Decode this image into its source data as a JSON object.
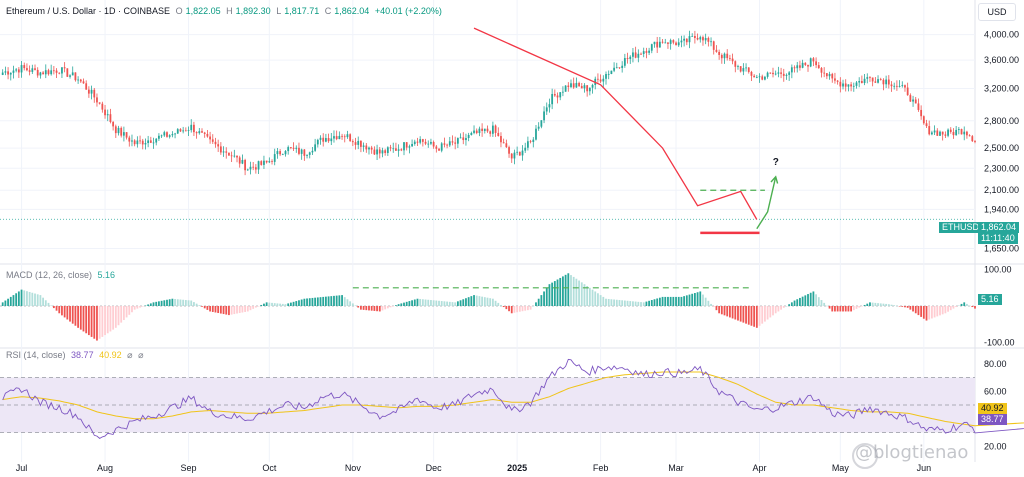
{
  "legend": {
    "title": "Ethereum / U.S. Dollar · 1D · COINBASE",
    "o_label": "O",
    "o_value": "1,822.05",
    "h_label": "H",
    "h_value": "1,892.30",
    "l_label": "L",
    "l_value": "1,817.71",
    "c_label": "C",
    "c_value": "1,862.04",
    "change": "+40.01 (+2.20%)"
  },
  "currency": "USD",
  "price_tag": {
    "symbol": "ETHUSD",
    "price": "1,862.04",
    "countdown": "11:11:40"
  },
  "macd_legend": {
    "label": "MACD (12, 26, close)",
    "value": "5.16"
  },
  "macd_tag": "5.16",
  "rsi_legend": {
    "label": "RSI (14, close)",
    "rsi_value": "38.77",
    "ma_value": "40.92"
  },
  "rsi_tags": {
    "ma": "40.92",
    "rsi": "38.77"
  },
  "watermark": "@blogtienao",
  "question_mark": "?",
  "colors": {
    "up": "#26a69a",
    "down": "#ef5350",
    "trendline": "#f23645",
    "dashed_green": "#4caf50",
    "arrow": "#4caf50",
    "rsi": "#7e57c2",
    "rsi_ma": "#f0c419",
    "rsi_band": "#ede7f6",
    "tag_blue": "#2962ff"
  },
  "chart_data": [
    {
      "type": "candlestick",
      "title": "Ethereum / U.S. Dollar · 1D · COINBASE",
      "y_scale": "log",
      "ylim": [
        1560,
        4250
      ],
      "y_ticks": [
        "4,000.00",
        "3,600.00",
        "3,200.00",
        "2,800.00",
        "2,500.00",
        "2,300.00",
        "2,100.00",
        "1,940.00",
        "1,650.00"
      ],
      "y_tick_values": [
        4000,
        3600,
        3200,
        2800,
        2500,
        2300,
        2100,
        1940,
        1650
      ],
      "x_ticks": [
        "Jul",
        "Aug",
        "Sep",
        "Oct",
        "Nov",
        "Dec",
        "2025",
        "Feb",
        "Mar",
        "Apr",
        "May",
        "Jun"
      ],
      "x_tick_dates": [
        "2024-07-01",
        "2024-08-01",
        "2024-09-01",
        "2024-10-01",
        "2024-11-01",
        "2024-12-01",
        "2025-01-01",
        "2025-02-01",
        "2025-03-01",
        "2025-04-01",
        "2025-05-01",
        "2025-06-01"
      ],
      "x_range": [
        "2024-06-23",
        "2025-06-20"
      ],
      "closes_weekly": {
        "start": "2024-06-24",
        "interval_days": 7,
        "values": [
          3420,
          3480,
          3420,
          3460,
          3330,
          3050,
          2700,
          2550,
          2600,
          2650,
          2730,
          2560,
          2450,
          2300,
          2350,
          2500,
          2450,
          2600,
          2650,
          2550,
          2450,
          2500,
          2600,
          2500,
          2550,
          2650,
          2700,
          2400,
          2550,
          3050,
          3250,
          3200,
          3400,
          3600,
          3750,
          3900,
          3850,
          4000,
          3700,
          3500,
          3350,
          3400,
          3450,
          3600,
          3300,
          3250,
          3350,
          3300,
          3150,
          2700,
          2650,
          2700,
          2500,
          2200,
          2000,
          1900,
          1950,
          2000,
          1850,
          1862
        ]
      },
      "last_close": 1862.04,
      "trendlines": [
        {
          "points": [
            [
              "2024-12-16",
              4110
            ],
            [
              "2025-01-06",
              3700
            ],
            [
              "2025-02-01",
              3250
            ],
            [
              "2025-02-24",
              2500
            ],
            [
              "2025-03-09",
              1970
            ],
            [
              "2025-03-25",
              2090
            ],
            [
              "2025-03-31",
              1860
            ]
          ]
        }
      ],
      "support_line": {
        "from": "2025-03-10",
        "to": "2025-04-01",
        "value": 1760
      },
      "dashed_resistance": {
        "from": "2025-03-10",
        "to": "2025-04-03",
        "value": 2100
      },
      "projection_arrow": [
        [
          "2025-03-31",
          1790
        ],
        [
          "2025-04-04",
          1920
        ],
        [
          "2025-04-07",
          2220
        ]
      ],
      "annotations": [
        "?"
      ]
    },
    {
      "type": "bar",
      "title": "MACD (12, 26, close)",
      "ylim": [
        -110,
        110
      ],
      "y_ticks": [
        "100.00",
        "-100.00"
      ],
      "y_tick_values": [
        100,
        -100
      ],
      "last_value": 5.16,
      "dashed_level": 50,
      "histogram_weekly": {
        "start": "2024-06-24",
        "interval_days": 7,
        "values": [
          10,
          45,
          30,
          -20,
          -60,
          -95,
          -60,
          -10,
          10,
          20,
          15,
          -15,
          -25,
          -15,
          10,
          5,
          20,
          25,
          30,
          -10,
          -15,
          5,
          20,
          15,
          10,
          30,
          20,
          -20,
          -10,
          60,
          90,
          55,
          20,
          15,
          10,
          25,
          25,
          40,
          -20,
          -40,
          -60,
          -20,
          15,
          40,
          -15,
          -15,
          10,
          5,
          -5,
          -40,
          -20,
          10,
          -20,
          -60,
          -35,
          -10,
          20,
          30,
          35,
          5
        ]
      }
    },
    {
      "type": "line",
      "title": "RSI (14, close)",
      "ylim": [
        10,
        90
      ],
      "y_ticks": [
        "80.00",
        "60.00",
        "20.00"
      ],
      "y_tick_values": [
        80,
        60,
        20
      ],
      "band": [
        30,
        70
      ],
      "mid": 50,
      "series": [
        {
          "name": "RSI (14, close)",
          "start": "2024-06-24",
          "interval_days": 7,
          "values": [
            55,
            62,
            52,
            48,
            42,
            26,
            32,
            38,
            42,
            48,
            55,
            45,
            42,
            40,
            45,
            50,
            48,
            56,
            58,
            50,
            42,
            46,
            55,
            48,
            50,
            58,
            62,
            45,
            52,
            70,
            82,
            74,
            78,
            77,
            72,
            74,
            73,
            76,
            60,
            52,
            46,
            48,
            52,
            56,
            44,
            42,
            48,
            44,
            40,
            32,
            32,
            36,
            30,
            26,
            30,
            34,
            36,
            42,
            32,
            38.77
          ]
        },
        {
          "name": "RSI-based MA",
          "start": "2024-06-24",
          "interval_days": 7,
          "values": [
            54,
            56,
            55,
            53,
            50,
            45,
            42,
            40,
            40,
            42,
            45,
            46,
            45,
            44,
            44,
            45,
            46,
            48,
            50,
            50,
            49,
            48,
            49,
            49,
            50,
            52,
            54,
            52,
            52,
            56,
            62,
            66,
            70,
            72,
            73,
            74,
            74,
            74,
            70,
            65,
            58,
            52,
            50,
            50,
            48,
            46,
            45,
            45,
            44,
            41,
            38,
            36,
            34,
            32,
            31,
            32,
            34,
            36,
            38,
            40.92
          ]
        }
      ]
    }
  ]
}
